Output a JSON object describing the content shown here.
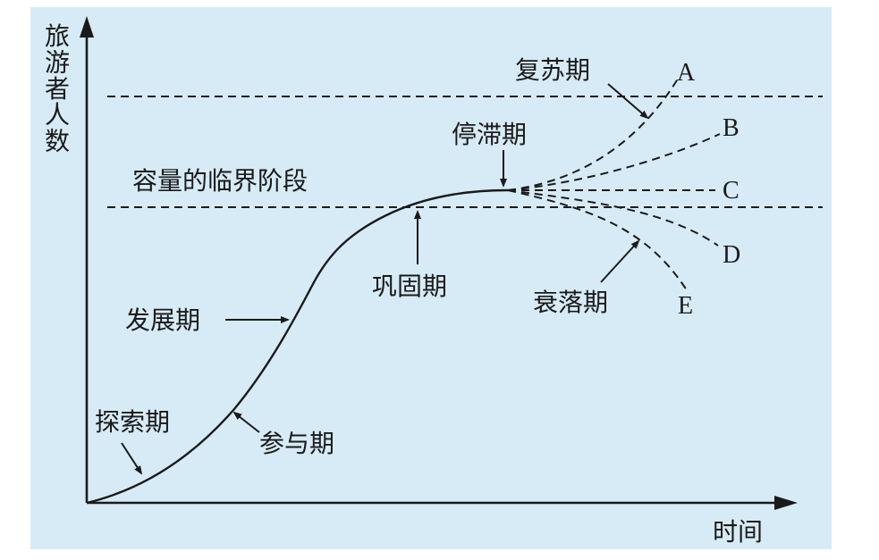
{
  "colors": {
    "background": "#d6ebf6",
    "ink": "#1a1a1a"
  },
  "axes": {
    "y_label": "旅游者人数",
    "x_label": "时间"
  },
  "capacity_label": "容量的临界阶段",
  "stages": {
    "exploration": "探索期",
    "involvement": "参与期",
    "development": "发展期",
    "consolidation": "巩固期",
    "stagnation": "停滞期",
    "rejuvenation": "复苏期",
    "decline": "衰落期"
  },
  "branches": {
    "a": "A",
    "b": "B",
    "c": "C",
    "d": "D",
    "e": "E"
  }
}
